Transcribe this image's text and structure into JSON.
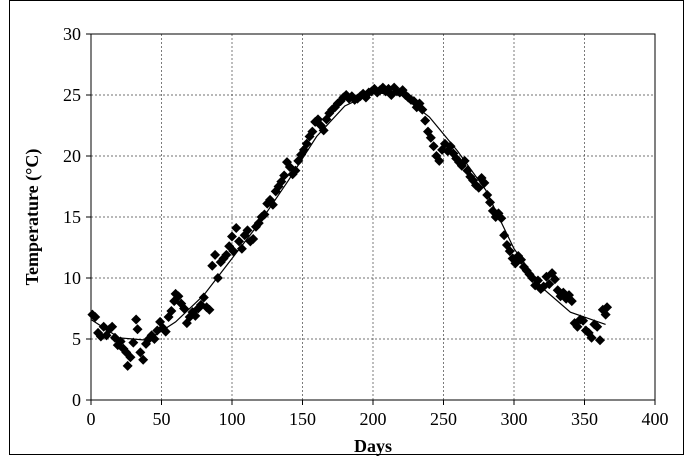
{
  "chart_data": {
    "type": "scatter",
    "title": "",
    "xlabel": "Days",
    "ylabel": "Temperature (°C)",
    "xlim": [
      0,
      400
    ],
    "ylim": [
      0,
      30
    ],
    "x_ticks": [
      0,
      50,
      100,
      150,
      200,
      250,
      300,
      350,
      400
    ],
    "y_ticks": [
      0,
      5,
      10,
      15,
      20,
      25,
      30
    ],
    "grid": true,
    "legend": "none",
    "marker_color": "#000000",
    "series": [
      {
        "type": "scatter",
        "marker": "diamond",
        "points": [
          [
            1,
            7.0
          ],
          [
            3,
            6.8
          ],
          [
            5,
            5.5
          ],
          [
            7,
            5.2
          ],
          [
            9,
            6.0
          ],
          [
            11,
            5.3
          ],
          [
            13,
            5.8
          ],
          [
            15,
            6.0
          ],
          [
            17,
            5.1
          ],
          [
            19,
            4.5
          ],
          [
            21,
            4.8
          ],
          [
            23,
            4.2
          ],
          [
            25,
            3.9
          ],
          [
            26,
            2.8
          ],
          [
            28,
            3.5
          ],
          [
            30,
            4.7
          ],
          [
            32,
            6.6
          ],
          [
            33,
            5.8
          ],
          [
            35,
            3.9
          ],
          [
            37,
            3.3
          ],
          [
            39,
            4.6
          ],
          [
            41,
            5.0
          ],
          [
            43,
            5.3
          ],
          [
            45,
            5.0
          ],
          [
            47,
            5.7
          ],
          [
            49,
            6.4
          ],
          [
            51,
            5.9
          ],
          [
            53,
            5.6
          ],
          [
            55,
            6.8
          ],
          [
            57,
            7.3
          ],
          [
            59,
            8.1
          ],
          [
            60,
            8.7
          ],
          [
            62,
            8.5
          ],
          [
            64,
            7.9
          ],
          [
            66,
            7.5
          ],
          [
            68,
            6.3
          ],
          [
            70,
            6.8
          ],
          [
            72,
            7.2
          ],
          [
            74,
            6.9
          ],
          [
            76,
            7.5
          ],
          [
            78,
            7.8
          ],
          [
            80,
            8.4
          ],
          [
            82,
            7.6
          ],
          [
            84,
            7.4
          ],
          [
            86,
            11.0
          ],
          [
            88,
            11.9
          ],
          [
            90,
            10.0
          ],
          [
            92,
            11.3
          ],
          [
            94,
            11.6
          ],
          [
            96,
            11.9
          ],
          [
            98,
            12.6
          ],
          [
            100,
            13.4
          ],
          [
            101,
            12.2
          ],
          [
            103,
            14.1
          ],
          [
            105,
            13.0
          ],
          [
            107,
            12.4
          ],
          [
            109,
            13.5
          ],
          [
            111,
            13.9
          ],
          [
            113,
            13.0
          ],
          [
            115,
            13.2
          ],
          [
            117,
            14.2
          ],
          [
            119,
            14.5
          ],
          [
            121,
            15.0
          ],
          [
            123,
            15.2
          ],
          [
            125,
            16.1
          ],
          [
            127,
            16.4
          ],
          [
            129,
            16.0
          ],
          [
            131,
            17.1
          ],
          [
            133,
            17.5
          ],
          [
            135,
            17.9
          ],
          [
            137,
            18.4
          ],
          [
            139,
            19.5
          ],
          [
            141,
            19.1
          ],
          [
            143,
            18.5
          ],
          [
            145,
            18.8
          ],
          [
            147,
            19.6
          ],
          [
            149,
            20.1
          ],
          [
            151,
            20.5
          ],
          [
            153,
            21.0
          ],
          [
            155,
            21.6
          ],
          [
            157,
            22.0
          ],
          [
            159,
            22.8
          ],
          [
            161,
            23.0
          ],
          [
            163,
            22.5
          ],
          [
            165,
            22.1
          ],
          [
            167,
            23.0
          ],
          [
            169,
            23.5
          ],
          [
            171,
            23.8
          ],
          [
            173,
            24.0
          ],
          [
            175,
            24.3
          ],
          [
            177,
            24.5
          ],
          [
            179,
            24.8
          ],
          [
            181,
            25.0
          ],
          [
            183,
            24.7
          ],
          [
            185,
            24.9
          ],
          [
            187,
            24.6
          ],
          [
            189,
            24.7
          ],
          [
            191,
            24.9
          ],
          [
            193,
            25.1
          ],
          [
            195,
            24.8
          ],
          [
            197,
            25.2
          ],
          [
            199,
            25.3
          ],
          [
            201,
            25.5
          ],
          [
            203,
            25.2
          ],
          [
            205,
            25.4
          ],
          [
            207,
            25.6
          ],
          [
            209,
            25.3
          ],
          [
            211,
            25.5
          ],
          [
            213,
            25.0
          ],
          [
            215,
            25.6
          ],
          [
            217,
            25.3
          ],
          [
            219,
            25.2
          ],
          [
            221,
            25.4
          ],
          [
            223,
            25.0
          ],
          [
            225,
            24.8
          ],
          [
            227,
            24.6
          ],
          [
            229,
            24.5
          ],
          [
            231,
            24.0
          ],
          [
            233,
            24.3
          ],
          [
            235,
            23.8
          ],
          [
            237,
            22.9
          ],
          [
            239,
            22.0
          ],
          [
            241,
            21.5
          ],
          [
            243,
            20.8
          ],
          [
            245,
            20.0
          ],
          [
            247,
            19.6
          ],
          [
            249,
            20.5
          ],
          [
            251,
            21.0
          ],
          [
            253,
            20.4
          ],
          [
            255,
            20.8
          ],
          [
            257,
            20.2
          ],
          [
            259,
            19.8
          ],
          [
            261,
            19.5
          ],
          [
            263,
            19.2
          ],
          [
            265,
            19.6
          ],
          [
            267,
            18.8
          ],
          [
            269,
            18.3
          ],
          [
            271,
            18.0
          ],
          [
            273,
            17.6
          ],
          [
            275,
            17.4
          ],
          [
            277,
            18.2
          ],
          [
            279,
            17.8
          ],
          [
            281,
            16.8
          ],
          [
            283,
            16.2
          ],
          [
            285,
            15.5
          ],
          [
            287,
            15.0
          ],
          [
            289,
            15.3
          ],
          [
            291,
            14.9
          ],
          [
            293,
            13.5
          ],
          [
            295,
            12.7
          ],
          [
            297,
            12.2
          ],
          [
            299,
            11.6
          ],
          [
            301,
            11.2
          ],
          [
            303,
            11.8
          ],
          [
            305,
            11.5
          ],
          [
            307,
            10.9
          ],
          [
            309,
            10.6
          ],
          [
            311,
            10.3
          ],
          [
            313,
            10.0
          ],
          [
            315,
            9.4
          ],
          [
            317,
            9.8
          ],
          [
            319,
            9.1
          ],
          [
            321,
            9.3
          ],
          [
            323,
            10.1
          ],
          [
            325,
            9.5
          ],
          [
            327,
            10.4
          ],
          [
            329,
            9.9
          ],
          [
            331,
            9.0
          ],
          [
            333,
            8.5
          ],
          [
            335,
            8.8
          ],
          [
            337,
            8.3
          ],
          [
            339,
            8.6
          ],
          [
            341,
            8.1
          ],
          [
            343,
            6.3
          ],
          [
            345,
            6.0
          ],
          [
            347,
            6.6
          ],
          [
            349,
            6.5
          ],
          [
            351,
            5.7
          ],
          [
            353,
            5.5
          ],
          [
            355,
            5.1
          ],
          [
            357,
            6.2
          ],
          [
            359,
            6.0
          ],
          [
            361,
            4.9
          ],
          [
            363,
            7.4
          ],
          [
            365,
            7.0
          ],
          [
            366,
            7.6
          ]
        ]
      },
      {
        "type": "line",
        "style": "fitted-curve",
        "points": [
          [
            0,
            6.6
          ],
          [
            20,
            5.1
          ],
          [
            40,
            4.9
          ],
          [
            60,
            6.4
          ],
          [
            80,
            8.6
          ],
          [
            100,
            11.6
          ],
          [
            120,
            14.6
          ],
          [
            140,
            18.0
          ],
          [
            160,
            21.6
          ],
          [
            180,
            24.1
          ],
          [
            200,
            25.2
          ],
          [
            220,
            25.0
          ],
          [
            240,
            23.2
          ],
          [
            260,
            20.4
          ],
          [
            280,
            17.2
          ],
          [
            300,
            12.4
          ],
          [
            320,
            9.2
          ],
          [
            340,
            7.2
          ],
          [
            365,
            6.2
          ]
        ]
      }
    ]
  }
}
